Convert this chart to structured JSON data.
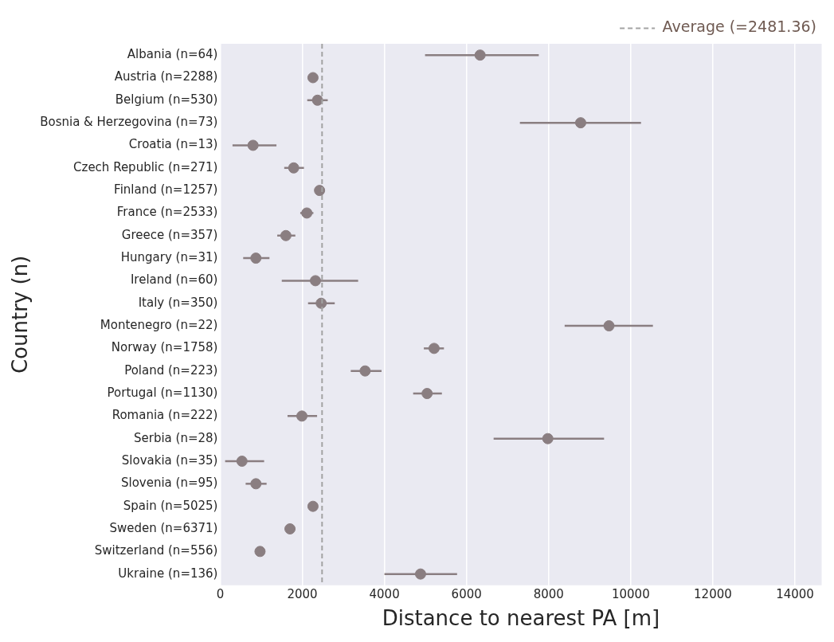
{
  "chart_data": {
    "type": "scatter",
    "orientation": "horizontal",
    "xlabel": "Distance to nearest PA [m]",
    "ylabel": "Country (n)",
    "categories": [
      "Albania (n=64)",
      "Austria (n=2288)",
      "Belgium (n=530)",
      "Bosnia & Herzegovina (n=73)",
      "Croatia (n=13)",
      "Czech Republic (n=271)",
      "Finland (n=1257)",
      "France (n=2533)",
      "Greece (n=357)",
      "Hungary (n=31)",
      "Ireland (n=60)",
      "Italy (n=350)",
      "Montenegro (n=22)",
      "Norway (n=1758)",
      "Poland (n=223)",
      "Portugal (n=1130)",
      "Romania (n=222)",
      "Serbia (n=28)",
      "Slovakia (n=35)",
      "Slovenia (n=95)",
      "Spain (n=5025)",
      "Sweden (n=6371)",
      "Switzerland (n=556)",
      "Ukraine (n=136)"
    ],
    "series": [
      {
        "color": "#8a7e81",
        "values": [
          6330,
          2260,
          2370,
          8780,
          800,
          1790,
          2420,
          2110,
          1600,
          870,
          2320,
          2460,
          9470,
          5210,
          3530,
          5040,
          1990,
          7980,
          530,
          870,
          2260,
          1700,
          970,
          4880
        ],
        "errors": [
          [
            4990,
            7760
          ],
          [
            2140,
            2380
          ],
          [
            2120,
            2620
          ],
          [
            7300,
            10250
          ],
          [
            300,
            1370
          ],
          [
            1560,
            2040
          ],
          [
            2300,
            2540
          ],
          [
            1950,
            2270
          ],
          [
            1390,
            1830
          ],
          [
            560,
            1200
          ],
          [
            1500,
            3360
          ],
          [
            2140,
            2790
          ],
          [
            8390,
            10540
          ],
          [
            4960,
            5450
          ],
          [
            3180,
            3930
          ],
          [
            4700,
            5400
          ],
          [
            1640,
            2360
          ],
          [
            6660,
            9350
          ],
          [
            120,
            1070
          ],
          [
            620,
            1130
          ],
          [
            2160,
            2370
          ],
          null,
          null,
          [
            4000,
            5770
          ]
        ]
      }
    ],
    "xlim": [
      0,
      14650
    ],
    "xticks": [
      0,
      2000,
      4000,
      6000,
      8000,
      10000,
      12000,
      14000
    ],
    "ref_lines": [
      {
        "axis": "x",
        "value": 2481.36,
        "label": "Average (=2481.36)",
        "color": "#a3a3a3",
        "line_style": "dashed"
      }
    ],
    "grid": "x",
    "legend": "top right",
    "marker": "circle"
  }
}
